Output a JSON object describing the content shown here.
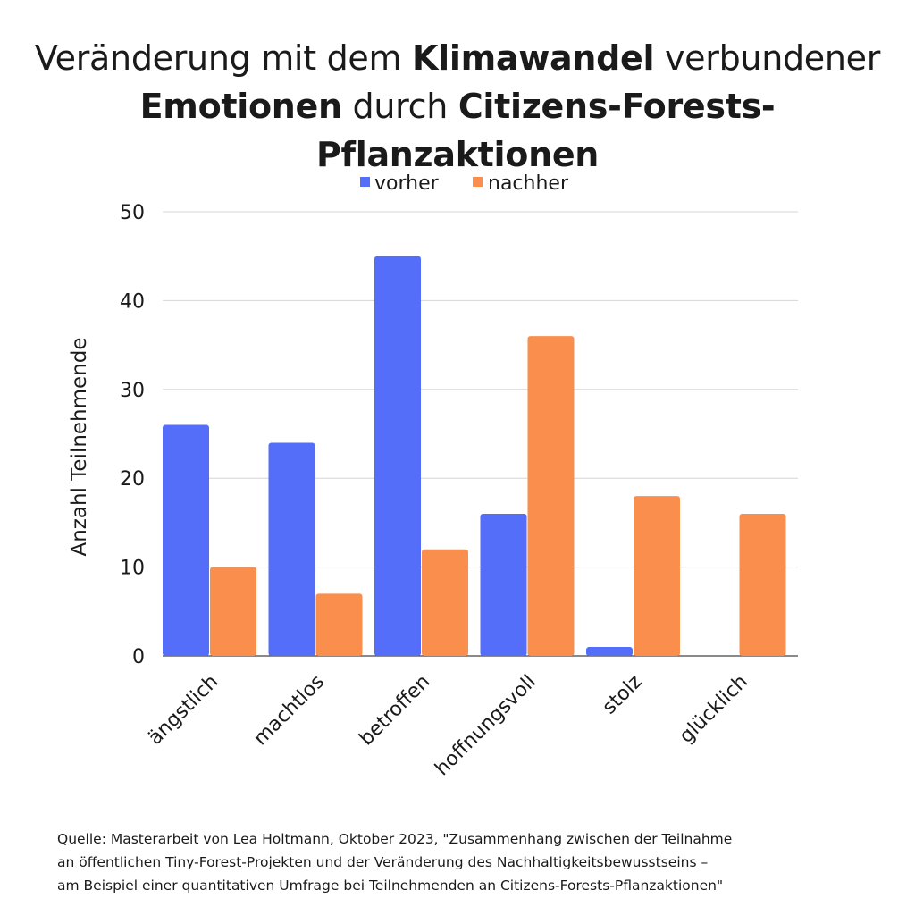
{
  "title": {
    "line1": [
      {
        "text": "Veränderung mit dem ",
        "bold": false
      },
      {
        "text": "Klimawandel",
        "bold": true
      },
      {
        "text": " verbundener",
        "bold": false
      }
    ],
    "line2": [
      {
        "text": "Emotionen",
        "bold": true
      },
      {
        "text": " durch ",
        "bold": false
      },
      {
        "text": "Citizens-Forests-Pflanzaktionen",
        "bold": true
      }
    ]
  },
  "chart_data": {
    "type": "bar",
    "categories": [
      "ängstlich",
      "machtlos",
      "betroffen",
      "hoffnungsvoll",
      "stolz",
      "glücklich"
    ],
    "series": [
      {
        "name": "vorher",
        "color": "#556ef9",
        "values": [
          26,
          24,
          45,
          16,
          1,
          0
        ]
      },
      {
        "name": "nachher",
        "color": "#fa8f4d",
        "values": [
          10,
          7,
          12,
          36,
          18,
          16
        ]
      }
    ],
    "xlabel": "",
    "ylabel": "Anzahl Teilnehmende",
    "ylim": [
      0,
      50
    ],
    "yticks": [
      0,
      10,
      20,
      30,
      40,
      50
    ],
    "grid": true,
    "legend": "top-center"
  },
  "source": {
    "line1": "Quelle: Masterarbeit von Lea Holtmann, Oktober 2023, \"Zusammenhang zwischen der Teilnahme",
    "line2": "an öffentlichen Tiny-Forest-Projekten und der Veränderung des Nachhaltigkeitsbewusstseins –",
    "line3": "am Beispiel einer quantitativen Umfrage bei Teilnehmenden an Citizens-Forests-Pflanzaktionen\""
  }
}
